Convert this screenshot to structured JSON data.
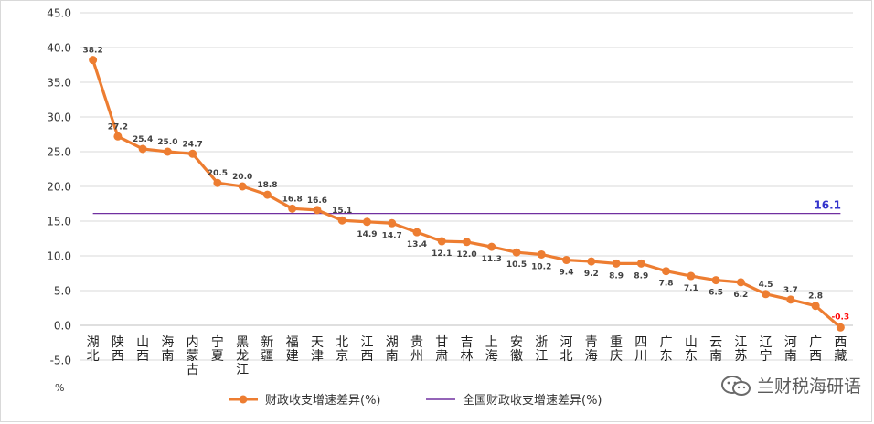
{
  "chart_data": {
    "type": "line",
    "categories": [
      "湖北",
      "陕西",
      "山西",
      "海南",
      "内蒙古",
      "宁夏",
      "黑龙江",
      "新疆",
      "福建",
      "天津",
      "北京",
      "江西",
      "湖南",
      "贵州",
      "甘肃",
      "吉林",
      "上海",
      "安徽",
      "浙江",
      "河北",
      "青海",
      "重庆",
      "四川",
      "广东",
      "山东",
      "云南",
      "江苏",
      "辽宁",
      "河南",
      "广西",
      "西藏"
    ],
    "series": [
      {
        "name": "财政收支增速差异(%)",
        "color": "#ED7D31",
        "values": [
          38.2,
          27.2,
          25.4,
          25.0,
          24.7,
          20.5,
          20.0,
          18.8,
          16.8,
          16.6,
          15.1,
          14.9,
          14.7,
          13.4,
          12.1,
          12.0,
          11.3,
          10.5,
          10.2,
          9.4,
          9.2,
          8.9,
          8.9,
          7.8,
          7.1,
          6.5,
          6.2,
          4.5,
          3.7,
          2.8,
          -0.3
        ],
        "labels": [
          "38.2",
          "27.2",
          "25.4",
          "25.0",
          "24.7",
          "20.5",
          "20.0",
          "18.8",
          "16.8",
          "16.6",
          "15.1",
          "14.9",
          "14.7",
          "13.4",
          "12.1",
          "12.0",
          "11.3",
          "10.5",
          "10.2",
          "9.4",
          "9.2",
          "8.9",
          "8.9",
          "7.8",
          "7.1",
          "6.5",
          "6.2",
          "4.5",
          "3.7",
          "2.8",
          "-0.3"
        ]
      },
      {
        "name": "全国财政收支增速差异(%)",
        "color": "#7030A0",
        "value": 16.1,
        "label": "16.1",
        "label_color": "#3333CC"
      }
    ],
    "y_ticks": [
      "-5.0",
      "0.0",
      "5.0",
      "10.0",
      "15.0",
      "20.0",
      "25.0",
      "30.0",
      "35.0",
      "40.0",
      "45.0"
    ],
    "ylim": [
      -5,
      45
    ],
    "ylabel": "%",
    "grid": true,
    "legend_position": "bottom",
    "negative_label_color": "#FF0000"
  },
  "watermark": {
    "text": "兰财税海研语"
  }
}
